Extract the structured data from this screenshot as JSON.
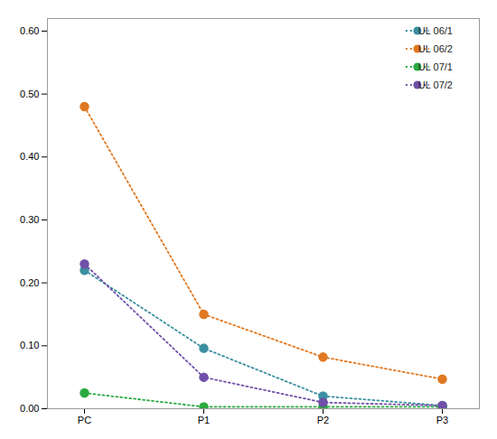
{
  "chart_data": {
    "type": "line",
    "categories": [
      "PC",
      "P1",
      "P2",
      "P3"
    ],
    "series": [
      {
        "name": "UL 06/1",
        "color": "#3a8fa0",
        "values": [
          0.22,
          0.096,
          0.02,
          0.005
        ]
      },
      {
        "name": "UL 06/2",
        "color": "#e07820",
        "values": [
          0.48,
          0.15,
          0.082,
          0.047
        ]
      },
      {
        "name": "UL 07/1",
        "color": "#2aaa40",
        "values": [
          0.025,
          0.003,
          0.003,
          0.003
        ]
      },
      {
        "name": "UL 07/2",
        "color": "#7050a8",
        "values": [
          0.23,
          0.05,
          0.01,
          0.005
        ]
      }
    ],
    "ylim": [
      0.0,
      0.62
    ],
    "yticks": [
      {
        "value": 0.0,
        "label": "0.00"
      },
      {
        "value": 0.1,
        "label": "0.10"
      },
      {
        "value": 0.2,
        "label": "0.20"
      },
      {
        "value": 0.3,
        "label": "0.30"
      },
      {
        "value": 0.4,
        "label": "0.40"
      },
      {
        "value": 0.5,
        "label": "0.50"
      },
      {
        "value": 0.6,
        "label": "0.60"
      }
    ],
    "grid": false,
    "legend": "upper right",
    "marker": "o",
    "line_style": "dotted"
  }
}
